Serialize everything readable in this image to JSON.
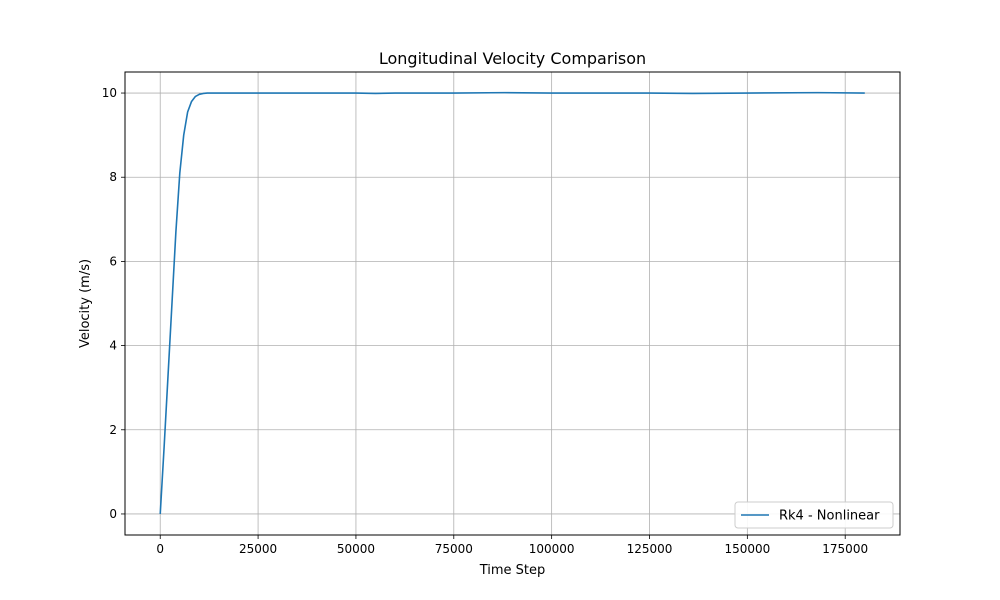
{
  "chart_data": {
    "type": "line",
    "title": "Longitudinal Velocity Comparison",
    "xlabel": "Time Step",
    "ylabel": "Velocity (m/s)",
    "xlim": [
      -9000,
      189000
    ],
    "ylim": [
      -0.5,
      10.5
    ],
    "x_ticks": [
      0,
      25000,
      50000,
      75000,
      100000,
      125000,
      150000,
      175000
    ],
    "x_tick_labels": [
      "0",
      "25000",
      "50000",
      "75000",
      "100000",
      "125000",
      "150000",
      "175000"
    ],
    "y_ticks": [
      0,
      2,
      4,
      6,
      8,
      10
    ],
    "y_tick_labels": [
      "0",
      "2",
      "4",
      "6",
      "8",
      "10"
    ],
    "grid": true,
    "legend_position": "lower-right",
    "series": [
      {
        "name": "Rk4 - Nonlinear",
        "color": "#1f77b4",
        "x": [
          0,
          1000,
          2000,
          3000,
          4000,
          5000,
          6000,
          7000,
          8000,
          9000,
          10000,
          11000,
          12000,
          13000,
          15000,
          20000,
          30000,
          50000,
          55000,
          60000,
          75000,
          88000,
          100000,
          125000,
          136000,
          150000,
          168000,
          180000
        ],
        "y": [
          0,
          1.6,
          3.3,
          5.0,
          6.7,
          8.1,
          9.0,
          9.55,
          9.8,
          9.92,
          9.97,
          9.99,
          10.0,
          10.0,
          10.0,
          10.0,
          10.0,
          10.0,
          9.99,
          10.0,
          10.0,
          10.01,
          10.0,
          10.0,
          9.99,
          10.0,
          10.01,
          10.0
        ]
      }
    ]
  }
}
